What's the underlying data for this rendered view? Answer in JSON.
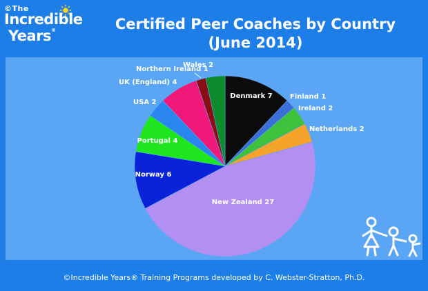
{
  "header": {
    "logo_the": "©The",
    "logo_line1": "Incredible",
    "logo_line2": "Years",
    "logo_reg": "®",
    "title_line1": "Certified Peer Coaches by Country",
    "title_line2": "(June 2014)"
  },
  "footer": {
    "text": "©Incredible Years® Training Programs developed by C. Webster-Stratton, Ph.D."
  },
  "icons": {
    "logo_sun": "sun-icon",
    "kids": "stick-figure-family-icon"
  },
  "chart_data": {
    "type": "pie",
    "title": "Certified Peer Coaches by Country",
    "subtitle": "(June 2014)",
    "start": "12 o'clock",
    "direction": "clockwise",
    "slices": [
      {
        "label": "Denmark",
        "value": 7,
        "color": "#0b0b0b",
        "text": "Denmark 7",
        "label_color": "#ffffff"
      },
      {
        "label": "Finland",
        "value": 1,
        "color": "#3a6fd8",
        "text": "Finland 1",
        "label_color": "#ffffff"
      },
      {
        "label": "Ireland",
        "value": 2,
        "color": "#3ec23e",
        "text": "Ireland 2",
        "label_color": "#ffffff"
      },
      {
        "label": "Netherlands",
        "value": 2,
        "color": "#f6a32b",
        "text": "Netherlands 2",
        "label_color": "#ffffff"
      },
      {
        "label": "New Zealand",
        "value": 27,
        "color": "#b48ff2",
        "text": "New Zealand 27",
        "label_color": "#ffffff"
      },
      {
        "label": "Norway",
        "value": 6,
        "color": "#0a22d8",
        "text": "Norway 6",
        "label_color": "#ffffff"
      },
      {
        "label": "Portugal",
        "value": 4,
        "color": "#1fe61f",
        "text": "Portugal 4",
        "label_color": "#ffffff"
      },
      {
        "label": "USA",
        "value": 2,
        "color": "#2a86ee",
        "text": "USA 2",
        "label_color": "#ffffff"
      },
      {
        "label": "UK (England)",
        "value": 4,
        "color": "#f0197a",
        "text": "UK (England) 4",
        "label_color": "#ffffff"
      },
      {
        "label": "Northern Ireland",
        "value": 1,
        "color": "#8a0d14",
        "text": "Northern Ireland 1",
        "label_color": "#ffffff"
      },
      {
        "label": "Wales",
        "value": 2,
        "color": "#0f8a2c",
        "text": "Wales 2",
        "label_color": "#ffffff"
      }
    ]
  }
}
